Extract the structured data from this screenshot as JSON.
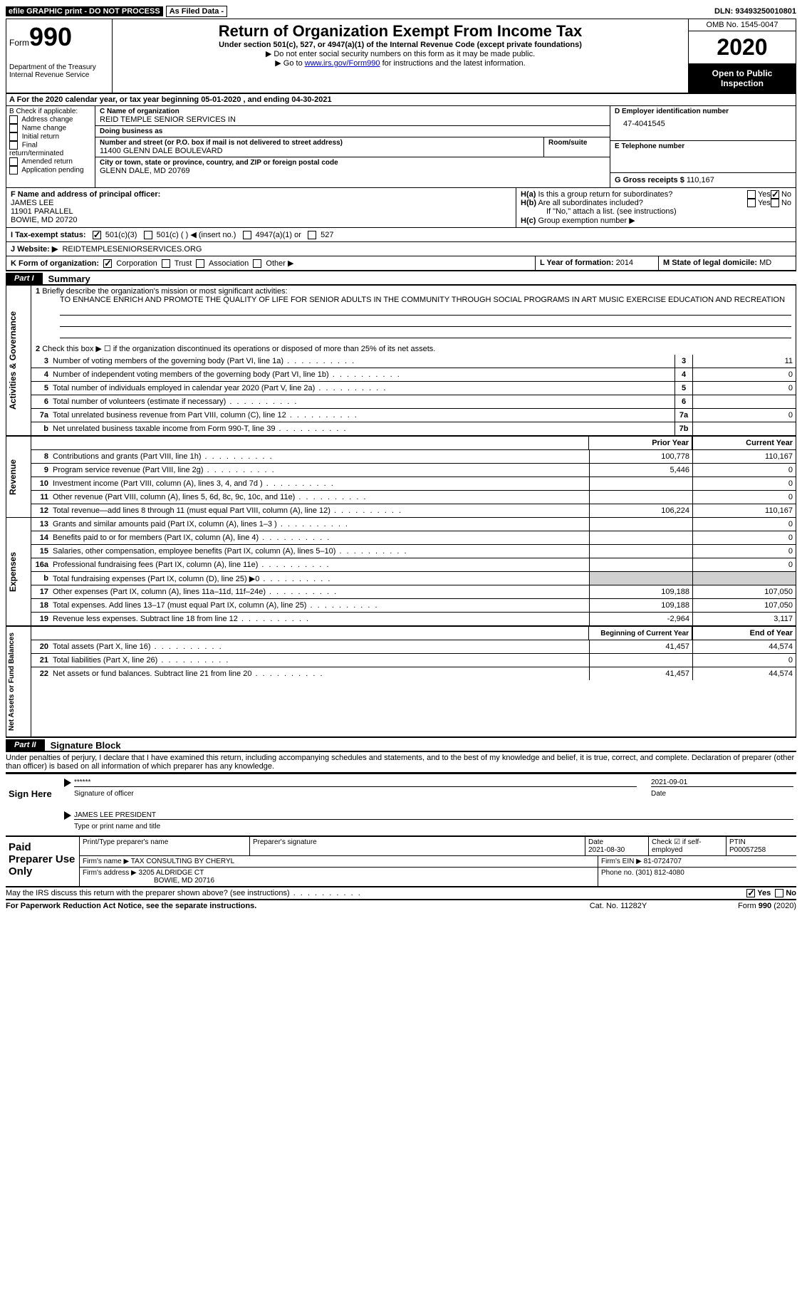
{
  "topbar": {
    "efile": "efile GRAPHIC print - DO NOT PROCESS",
    "asfiled": "As Filed Data -",
    "dln_label": "DLN:",
    "dln": "93493250010801"
  },
  "header": {
    "form_word": "Form",
    "form_no": "990",
    "dept": "Department of the Treasury\nInternal Revenue Service",
    "title": "Return of Organization Exempt From Income Tax",
    "subtitle": "Under section 501(c), 527, or 4947(a)(1) of the Internal Revenue Code (except private foundations)",
    "instr1": "▶ Do not enter social security numbers on this form as it may be made public.",
    "instr2_pre": "▶ Go to ",
    "instr2_link": "www.irs.gov/Form990",
    "instr2_post": " for instructions and the latest information.",
    "omb": "OMB No. 1545-0047",
    "year": "2020",
    "open": "Open to Public Inspection"
  },
  "row_a": "A   For the 2020 calendar year, or tax year beginning 05-01-2020  , and ending 04-30-2021",
  "b": {
    "label": "B Check if applicable:",
    "items": [
      "Address change",
      "Name change",
      "Initial return",
      "Final return/terminated",
      "Amended return",
      "Application pending"
    ]
  },
  "c": {
    "name_label": "C Name of organization",
    "name": "REID TEMPLE SENIOR SERVICES IN",
    "dba_label": "Doing business as",
    "dba": "",
    "street_label": "Number and street (or P.O. box if mail is not delivered to street address)",
    "street": "11400 GLENN DALE BOULEVARD",
    "room_label": "Room/suite",
    "city_label": "City or town, state or province, country, and ZIP or foreign postal code",
    "city": "GLENN DALE, MD  20769"
  },
  "d": {
    "ein_label": "D Employer identification number",
    "ein": "47-4041545",
    "phone_label": "E Telephone number",
    "phone": "",
    "gross_label": "G Gross receipts $",
    "gross": "110,167"
  },
  "f": {
    "label": "F  Name and address of principal officer:",
    "name": "JAMES LEE",
    "street": "11901 PARALLEL",
    "city": "BOWIE, MD  20720"
  },
  "h": {
    "a_label": "H(a) Is this a group return for subordinates?",
    "b_label": "H(b) Are all subordinates included?",
    "b_note": "If \"No,\" attach a list. (see instructions)",
    "c_label": "H(c) Group exemption number ▶",
    "yes": "Yes",
    "no": "No"
  },
  "i": {
    "label": "I  Tax-exempt status:",
    "o1": "501(c)(3)",
    "o2": "501(c) (  ) ◀ (insert no.)",
    "o3": "4947(a)(1) or",
    "o4": "527"
  },
  "j": {
    "label": "J  Website: ▶",
    "value": "REIDTEMPLESENIORSERVICES.ORG"
  },
  "k": {
    "label": "K Form of organization:",
    "o1": "Corporation",
    "o2": "Trust",
    "o3": "Association",
    "o4": "Other ▶"
  },
  "l": {
    "label": "L Year of formation:",
    "value": "2014"
  },
  "m": {
    "label": "M State of legal domicile:",
    "value": "MD"
  },
  "part1": {
    "tab": "Part I",
    "title": "Summary"
  },
  "summary": {
    "side1": "Activities & Governance",
    "line1": "1 Briefly describe the organization's mission or most significant activities:",
    "mission": "TO ENHANCE ENRICH AND PROMOTE THE QUALITY OF LIFE FOR SENIOR ADULTS IN THE COMMUNITY THROUGH SOCIAL PROGRAMS IN ART MUSIC EXERCISE EDUCATION AND RECREATION",
    "line2": "Check this box ▶ ☐ if the organization discontinued its operations or disposed of more than 25% of its net assets.",
    "rows_gov": [
      {
        "n": "3",
        "t": "Number of voting members of the governing body (Part VI, line 1a)",
        "box": "3",
        "v": "11"
      },
      {
        "n": "4",
        "t": "Number of independent voting members of the governing body (Part VI, line 1b)",
        "box": "4",
        "v": "0"
      },
      {
        "n": "5",
        "t": "Total number of individuals employed in calendar year 2020 (Part V, line 2a)",
        "box": "5",
        "v": "0"
      },
      {
        "n": "6",
        "t": "Total number of volunteers (estimate if necessary)",
        "box": "6",
        "v": ""
      },
      {
        "n": "7a",
        "t": "Total unrelated business revenue from Part VIII, column (C), line 12",
        "box": "7a",
        "v": "0"
      },
      {
        "n": "b",
        "t": "Net unrelated business taxable income from Form 990-T, line 39",
        "box": "7b",
        "v": ""
      }
    ],
    "col_prior": "Prior Year",
    "col_current": "Current Year",
    "side2": "Revenue",
    "rows_rev": [
      {
        "n": "8",
        "t": "Contributions and grants (Part VIII, line 1h)",
        "p": "100,778",
        "c": "110,167"
      },
      {
        "n": "9",
        "t": "Program service revenue (Part VIII, line 2g)",
        "p": "5,446",
        "c": "0"
      },
      {
        "n": "10",
        "t": "Investment income (Part VIII, column (A), lines 3, 4, and 7d )",
        "p": "",
        "c": "0"
      },
      {
        "n": "11",
        "t": "Other revenue (Part VIII, column (A), lines 5, 6d, 8c, 9c, 10c, and 11e)",
        "p": "",
        "c": "0"
      },
      {
        "n": "12",
        "t": "Total revenue—add lines 8 through 11 (must equal Part VIII, column (A), line 12)",
        "p": "106,224",
        "c": "110,167"
      }
    ],
    "side3": "Expenses",
    "rows_exp": [
      {
        "n": "13",
        "t": "Grants and similar amounts paid (Part IX, column (A), lines 1–3 )",
        "p": "",
        "c": "0"
      },
      {
        "n": "14",
        "t": "Benefits paid to or for members (Part IX, column (A), line 4)",
        "p": "",
        "c": "0"
      },
      {
        "n": "15",
        "t": "Salaries, other compensation, employee benefits (Part IX, column (A), lines 5–10)",
        "p": "",
        "c": "0"
      },
      {
        "n": "16a",
        "t": "Professional fundraising fees (Part IX, column (A), line 11e)",
        "p": "",
        "c": "0"
      },
      {
        "n": "b",
        "t": "Total fundraising expenses (Part IX, column (D), line 25) ▶0",
        "p": "",
        "c": "",
        "gray": true
      },
      {
        "n": "17",
        "t": "Other expenses (Part IX, column (A), lines 11a–11d, 11f–24e)",
        "p": "109,188",
        "c": "107,050"
      },
      {
        "n": "18",
        "t": "Total expenses. Add lines 13–17 (must equal Part IX, column (A), line 25)",
        "p": "109,188",
        "c": "107,050"
      },
      {
        "n": "19",
        "t": "Revenue less expenses. Subtract line 18 from line 12",
        "p": "-2,964",
        "c": "3,117"
      }
    ],
    "col_begin": "Beginning of Current Year",
    "col_end": "End of Year",
    "side4": "Net Assets or Fund Balances",
    "rows_net": [
      {
        "n": "20",
        "t": "Total assets (Part X, line 16)",
        "p": "41,457",
        "c": "44,574"
      },
      {
        "n": "21",
        "t": "Total liabilities (Part X, line 26)",
        "p": "",
        "c": "0"
      },
      {
        "n": "22",
        "t": "Net assets or fund balances. Subtract line 21 from line 20",
        "p": "41,457",
        "c": "44,574"
      }
    ]
  },
  "part2": {
    "tab": "Part II",
    "title": "Signature Block"
  },
  "perjury": "Under penalties of perjury, I declare that I have examined this return, including accompanying schedules and statements, and to the best of my knowledge and belief, it is true, correct, and complete. Declaration of preparer (other than officer) is based on all information of which preparer has any knowledge.",
  "sign": {
    "left": "Sign Here",
    "stars": "******",
    "sig_label": "Signature of officer",
    "date": "2021-09-01",
    "date_label": "Date",
    "name": "JAMES LEE PRESIDENT",
    "name_label": "Type or print name and title"
  },
  "prep": {
    "left": "Paid Preparer Use Only",
    "h1": "Print/Type preparer's name",
    "h2": "Preparer's signature",
    "h3": "Date",
    "date": "2021-08-30",
    "h4": "Check ☑ if self-employed",
    "h5": "PTIN",
    "ptin": "P00057258",
    "firm_label": "Firm's name   ▶",
    "firm": "TAX CONSULTING BY CHERYL",
    "ein_label": "Firm's EIN ▶",
    "ein": "81-0724707",
    "addr_label": "Firm's address ▶",
    "addr1": "3205 ALDRIDGE CT",
    "addr2": "BOWIE, MD  20716",
    "phone_label": "Phone no.",
    "phone": "(301) 812-4080"
  },
  "discuss": "May the IRS discuss this return with the preparer shown above? (see instructions)",
  "footer": {
    "left": "For Paperwork Reduction Act Notice, see the separate instructions.",
    "mid": "Cat. No. 11282Y",
    "right_pre": "Form ",
    "right_no": "990",
    "right_post": " (2020)"
  }
}
